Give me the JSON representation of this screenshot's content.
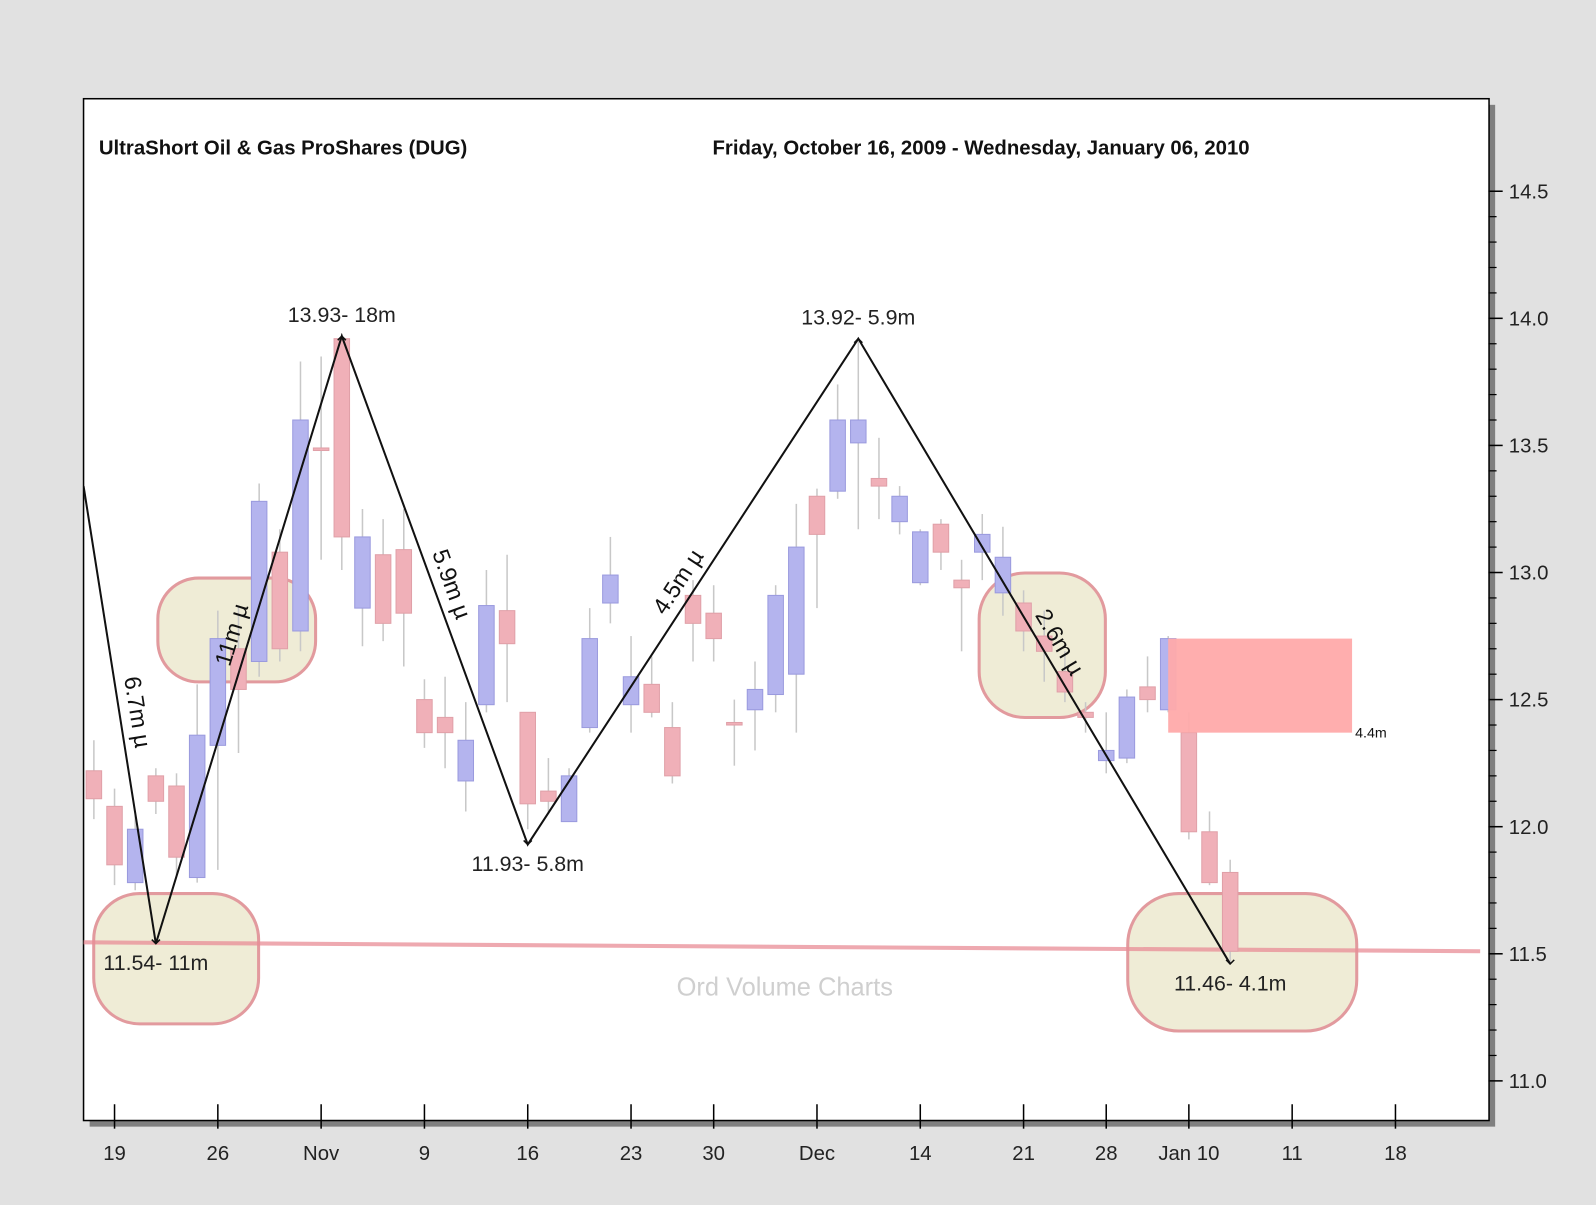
{
  "chart_data": {
    "type": "candlestick",
    "title": "UltraShort Oil & Gas ProShares (DUG)",
    "subtitle": "Friday, October 16, 2009 - Wednesday, January 06, 2010",
    "watermark": "Ord Volume Charts",
    "x": [
      0,
      1,
      2,
      3,
      4,
      5,
      6,
      7,
      8,
      9,
      10,
      11,
      12,
      13,
      14,
      15,
      16,
      17,
      18,
      19,
      20,
      21,
      22,
      23,
      24,
      25,
      26,
      27,
      28,
      29,
      30,
      31,
      32,
      33,
      34,
      35,
      36,
      37,
      38,
      39,
      40,
      41,
      42,
      43,
      44,
      45,
      46,
      47,
      48,
      49,
      50,
      51,
      52,
      53,
      54,
      55
    ],
    "open": [
      12.22,
      12.08,
      11.78,
      12.2,
      12.16,
      11.8,
      12.32,
      12.7,
      12.65,
      13.08,
      12.77,
      13.49,
      13.92,
      12.86,
      13.07,
      13.09,
      12.5,
      12.43,
      12.18,
      12.48,
      12.85,
      12.45,
      12.14,
      12.02,
      12.39,
      12.88,
      12.48,
      12.56,
      12.39,
      12.91,
      12.84,
      12.41,
      12.46,
      12.52,
      12.6,
      13.3,
      13.32,
      13.51,
      13.37,
      13.2,
      12.96,
      13.19,
      12.97,
      13.08,
      12.92,
      12.88,
      12.75,
      12.61,
      12.45,
      12.26,
      12.27,
      12.55,
      12.46,
      12.37,
      11.98,
      11.82
    ],
    "high": [
      12.34,
      12.15,
      12.05,
      12.23,
      12.21,
      12.56,
      12.85,
      12.87,
      13.35,
      13.17,
      13.83,
      13.85,
      13.94,
      13.25,
      13.21,
      13.25,
      12.58,
      12.59,
      12.49,
      13.01,
      13.07,
      12.45,
      12.27,
      12.23,
      12.86,
      13.14,
      12.75,
      12.67,
      12.49,
      12.97,
      12.95,
      12.5,
      12.65,
      12.95,
      13.27,
      13.33,
      13.74,
      13.91,
      13.53,
      13.34,
      13.17,
      13.21,
      13.05,
      13.23,
      13.18,
      12.93,
      12.85,
      12.69,
      12.49,
      12.45,
      12.54,
      12.67,
      12.75,
      12.45,
      12.06,
      11.87
    ],
    "low": [
      12.03,
      11.77,
      11.75,
      12.05,
      11.81,
      11.78,
      11.83,
      12.29,
      12.59,
      12.65,
      12.69,
      13.05,
      13.01,
      12.71,
      12.73,
      12.63,
      12.31,
      12.23,
      12.06,
      12.45,
      12.49,
      11.99,
      12.05,
      12.02,
      12.37,
      12.8,
      12.37,
      12.43,
      12.17,
      12.65,
      12.65,
      12.24,
      12.3,
      12.45,
      12.37,
      12.86,
      13.29,
      13.17,
      13.21,
      13.15,
      12.95,
      13.01,
      12.69,
      12.97,
      12.83,
      12.69,
      12.57,
      12.49,
      12.37,
      12.21,
      12.25,
      12.45,
      12.45,
      11.95,
      11.77,
      11.46
    ],
    "close": [
      12.11,
      11.85,
      11.99,
      12.1,
      11.88,
      12.36,
      12.74,
      12.54,
      13.28,
      12.7,
      13.6,
      13.48,
      13.14,
      13.14,
      12.8,
      12.84,
      12.37,
      12.37,
      12.34,
      12.87,
      12.72,
      12.09,
      12.1,
      12.2,
      12.74,
      12.99,
      12.59,
      12.45,
      12.2,
      12.8,
      12.74,
      12.4,
      12.54,
      12.91,
      13.1,
      13.15,
      13.6,
      13.6,
      13.34,
      13.3,
      13.16,
      13.08,
      12.94,
      13.15,
      13.06,
      12.77,
      12.69,
      12.53,
      12.43,
      12.3,
      12.51,
      12.5,
      12.74,
      11.98,
      11.78,
      11.51
    ],
    "up_color": "#b4b4ee",
    "down_color": "#f0b0b8",
    "zigzag": {
      "x": [
        -0.5,
        3,
        12,
        21,
        37,
        55
      ],
      "y": [
        13.34,
        11.54,
        13.93,
        11.93,
        13.92,
        11.46
      ],
      "point_labels": [
        null,
        "11.54- 11m",
        "13.93- 18m",
        "11.93- 5.8m",
        "13.92- 5.9m",
        "11.46- 4.1m"
      ],
      "leg_labels": [
        "6.7m µ",
        "11m µ",
        "5.9m µ",
        "4.5m µ",
        "2.6m µ"
      ]
    },
    "support_line": {
      "x": [
        -0.5,
        67.1
      ],
      "y": [
        11.545,
        11.51
      ],
      "color": "#e88c96"
    },
    "volume_box": {
      "x": [
        52,
        60.9
      ],
      "y": [
        12.37,
        12.74
      ],
      "label": "4.4m",
      "color": "#ffaaaa"
    },
    "xlim": [
      -0.5,
      67.5
    ],
    "xticks": [
      {
        "value": 1,
        "label": "19"
      },
      {
        "value": 6,
        "label": "26"
      },
      {
        "value": 11,
        "label": "Nov"
      },
      {
        "value": 16,
        "label": "9"
      },
      {
        "value": 21,
        "label": "16"
      },
      {
        "value": 26,
        "label": "23"
      },
      {
        "value": 30,
        "label": "30"
      },
      {
        "value": 35,
        "label": "Dec"
      },
      {
        "value": 40,
        "label": "14"
      },
      {
        "value": 45,
        "label": "21"
      },
      {
        "value": 49,
        "label": "28"
      },
      {
        "value": 53,
        "label": "Jan 10"
      },
      {
        "value": 58,
        "label": "11"
      },
      {
        "value": 63,
        "label": "18"
      }
    ],
    "ylim": [
      10.844,
      14.864
    ],
    "yticks": [
      {
        "value": 11,
        "label": "11.0"
      },
      11.5,
      {
        "value": 12,
        "label": "12.0"
      },
      12.5,
      {
        "value": 13,
        "label": "13.0"
      },
      13.5,
      {
        "value": 14,
        "label": "14.0"
      },
      14.5
    ]
  }
}
